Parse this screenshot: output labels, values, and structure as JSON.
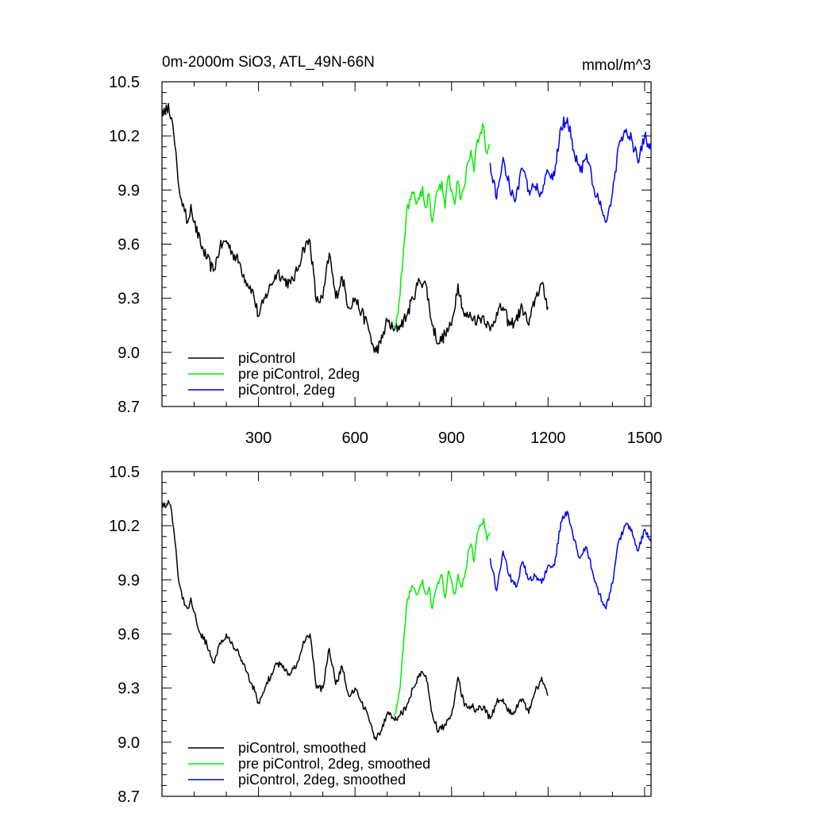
{
  "figure": {
    "title": "0m-2000m SiO3, ATL_49N-66N",
    "units": "mmol/m^3"
  },
  "chart_data": [
    {
      "type": "line",
      "panel": "top",
      "title": "0m-2000m SiO3, ATL_49N-66N",
      "units_label": "mmol/m^3",
      "xlim": [
        0,
        1520
      ],
      "ylim": [
        8.7,
        10.5
      ],
      "xticks": [
        300,
        600,
        900,
        1200,
        1500
      ],
      "show_x_tick_labels": true,
      "yticks": [
        8.7,
        9.0,
        9.3,
        9.6,
        9.9,
        10.2,
        10.5
      ],
      "ytick_labels": [
        "8.7",
        "9.0",
        "9.3",
        "9.6",
        "9.9",
        "10.2",
        "10.5"
      ],
      "legend_position": "bottom-left",
      "series": [
        {
          "name": "piControl",
          "color": "#000000",
          "x": [
            0,
            10,
            20,
            30,
            40,
            50,
            60,
            70,
            80,
            90,
            100,
            120,
            140,
            160,
            180,
            200,
            220,
            240,
            260,
            280,
            300,
            320,
            340,
            360,
            380,
            400,
            420,
            440,
            460,
            480,
            500,
            520,
            540,
            560,
            580,
            600,
            620,
            640,
            660,
            680,
            700,
            720,
            740,
            760,
            780,
            800,
            820,
            840,
            860,
            880,
            900,
            920,
            940,
            960,
            980,
            1000,
            1020,
            1040,
            1060,
            1080,
            1100,
            1120,
            1140,
            1160,
            1180,
            1200
          ],
          "y": [
            10.35,
            10.32,
            10.38,
            10.3,
            10.15,
            9.95,
            9.85,
            9.78,
            9.72,
            9.82,
            9.72,
            9.6,
            9.52,
            9.45,
            9.58,
            9.62,
            9.55,
            9.5,
            9.4,
            9.35,
            9.2,
            9.3,
            9.38,
            9.45,
            9.4,
            9.38,
            9.45,
            9.58,
            9.62,
            9.28,
            9.3,
            9.55,
            9.3,
            9.42,
            9.25,
            9.3,
            9.22,
            9.15,
            9.0,
            9.05,
            9.18,
            9.12,
            9.15,
            9.2,
            9.3,
            9.4,
            9.38,
            9.15,
            9.05,
            9.1,
            9.15,
            9.38,
            9.2,
            9.2,
            9.18,
            9.2,
            9.12,
            9.22,
            9.25,
            9.15,
            9.18,
            9.25,
            9.15,
            9.3,
            9.38,
            9.25
          ]
        },
        {
          "name": "pre piControl, 2deg",
          "color": "#00ee00",
          "x": [
            720,
            730,
            740,
            750,
            760,
            770,
            780,
            790,
            800,
            810,
            820,
            830,
            840,
            850,
            860,
            870,
            880,
            890,
            900,
            910,
            920,
            930,
            940,
            950,
            960,
            970,
            980,
            990,
            1000,
            1010,
            1020
          ],
          "y": [
            9.15,
            9.2,
            9.32,
            9.55,
            9.78,
            9.85,
            9.88,
            9.82,
            9.85,
            9.92,
            9.8,
            9.88,
            9.72,
            9.85,
            9.9,
            9.95,
            9.8,
            9.98,
            9.9,
            9.82,
            9.95,
            9.85,
            9.92,
            10.05,
            10.12,
            10.0,
            10.18,
            10.22,
            10.25,
            10.1,
            10.15
          ]
        },
        {
          "name": "piControl, 2deg",
          "color": "#0000ee",
          "x": [
            1020,
            1040,
            1060,
            1080,
            1100,
            1120,
            1140,
            1160,
            1180,
            1200,
            1220,
            1240,
            1260,
            1280,
            1300,
            1320,
            1340,
            1360,
            1380,
            1400,
            1420,
            1440,
            1460,
            1480,
            1500,
            1520
          ],
          "y": [
            10.05,
            9.85,
            10.08,
            9.92,
            9.85,
            10.02,
            9.9,
            9.92,
            9.88,
            10.0,
            9.98,
            10.25,
            10.3,
            10.12,
            10.0,
            10.1,
            9.92,
            9.82,
            9.72,
            9.88,
            10.15,
            10.22,
            10.18,
            10.05,
            10.2,
            10.12
          ]
        }
      ]
    },
    {
      "type": "line",
      "panel": "bottom",
      "title": "",
      "xlim": [
        0,
        1520
      ],
      "ylim": [
        8.7,
        10.5
      ],
      "xticks": [
        300,
        600,
        900,
        1200,
        1500
      ],
      "show_x_tick_labels": false,
      "yticks": [
        8.7,
        9.0,
        9.3,
        9.6,
        9.9,
        10.2,
        10.5
      ],
      "ytick_labels": [
        "8.7",
        "9.0",
        "9.3",
        "9.6",
        "9.9",
        "10.2",
        "10.5"
      ],
      "legend_position": "bottom-left",
      "series": [
        {
          "name": "piControl, smoothed",
          "color": "#000000",
          "x": [
            0,
            10,
            20,
            30,
            40,
            50,
            60,
            70,
            80,
            90,
            100,
            120,
            140,
            160,
            180,
            200,
            220,
            240,
            260,
            280,
            300,
            320,
            340,
            360,
            380,
            400,
            420,
            440,
            460,
            480,
            500,
            520,
            540,
            560,
            580,
            600,
            620,
            640,
            660,
            680,
            700,
            720,
            740,
            760,
            780,
            800,
            820,
            840,
            860,
            880,
            900,
            920,
            940,
            960,
            980,
            1000,
            1020,
            1040,
            1060,
            1080,
            1100,
            1120,
            1140,
            1160,
            1180,
            1200
          ],
          "y": [
            10.33,
            10.3,
            10.34,
            10.28,
            10.12,
            9.92,
            9.84,
            9.76,
            9.74,
            9.8,
            9.72,
            9.6,
            9.54,
            9.44,
            9.55,
            9.6,
            9.54,
            9.48,
            9.4,
            9.32,
            9.22,
            9.3,
            9.38,
            9.44,
            9.4,
            9.38,
            9.44,
            9.56,
            9.6,
            9.3,
            9.3,
            9.52,
            9.32,
            9.42,
            9.26,
            9.3,
            9.22,
            9.15,
            9.02,
            9.06,
            9.16,
            9.13,
            9.15,
            9.2,
            9.3,
            9.38,
            9.37,
            9.16,
            9.06,
            9.1,
            9.15,
            9.36,
            9.2,
            9.2,
            9.18,
            9.2,
            9.13,
            9.22,
            9.24,
            9.16,
            9.18,
            9.24,
            9.16,
            9.28,
            9.36,
            9.26
          ]
        },
        {
          "name": "pre piControl, 2deg, smoothed",
          "color": "#00ee00",
          "x": [
            720,
            730,
            740,
            750,
            760,
            770,
            780,
            790,
            800,
            810,
            820,
            830,
            840,
            850,
            860,
            870,
            880,
            890,
            900,
            910,
            920,
            930,
            940,
            950,
            960,
            970,
            980,
            990,
            1000,
            1010,
            1020
          ],
          "y": [
            9.15,
            9.2,
            9.3,
            9.52,
            9.76,
            9.84,
            9.86,
            9.82,
            9.85,
            9.9,
            9.82,
            9.86,
            9.74,
            9.84,
            9.88,
            9.93,
            9.8,
            9.95,
            9.9,
            9.82,
            9.93,
            9.86,
            9.91,
            10.03,
            10.1,
            10.0,
            10.16,
            10.2,
            10.24,
            10.12,
            10.16
          ]
        },
        {
          "name": "piControl, 2deg, smoothed",
          "color": "#0000ee",
          "x": [
            1020,
            1040,
            1060,
            1080,
            1100,
            1120,
            1140,
            1160,
            1180,
            1200,
            1220,
            1240,
            1260,
            1280,
            1300,
            1320,
            1340,
            1360,
            1380,
            1400,
            1420,
            1440,
            1460,
            1480,
            1500,
            1520
          ],
          "y": [
            10.02,
            9.84,
            10.06,
            9.92,
            9.86,
            10.0,
            9.9,
            9.92,
            9.88,
            9.98,
            9.98,
            10.22,
            10.28,
            10.12,
            10.02,
            10.08,
            9.93,
            9.82,
            9.74,
            9.88,
            10.12,
            10.2,
            10.18,
            10.06,
            10.18,
            10.13
          ]
        }
      ]
    }
  ]
}
